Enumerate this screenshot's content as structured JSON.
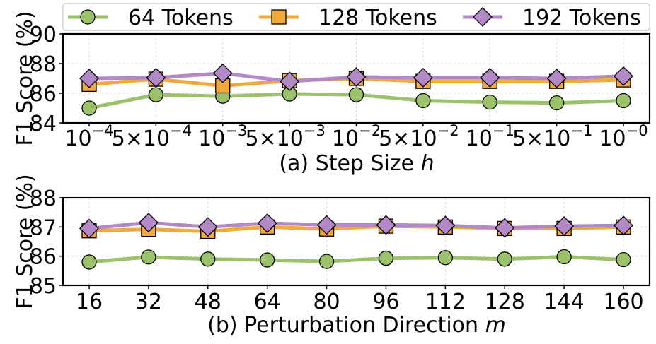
{
  "legend": {
    "entries": [
      {
        "label": "64 Tokens",
        "marker": "circle",
        "color": "#9bc26a"
      },
      {
        "label": "128 Tokens",
        "marker": "square",
        "color": "#f2a93b"
      },
      {
        "label": "192 Tokens",
        "marker": "diamond",
        "color": "#b388c6"
      }
    ]
  },
  "chart_data": [
    {
      "type": "line",
      "ylabel": "F1 Score (%)",
      "xlabel_prefix": "(a) Step Size ",
      "xlabel_var": "h",
      "ylim": [
        84,
        90
      ],
      "yticks": [
        "84",
        "86",
        "88",
        "90"
      ],
      "categories": [
        {
          "base": "10",
          "exp": "−4"
        },
        {
          "base": "5×10",
          "exp": "−4"
        },
        {
          "base": "10",
          "exp": "−3"
        },
        {
          "base": "5×10",
          "exp": "−3"
        },
        {
          "base": "10",
          "exp": "−2"
        },
        {
          "base": "5×10",
          "exp": "−2"
        },
        {
          "base": "10",
          "exp": "−1"
        },
        {
          "base": "5×10",
          "exp": "−1"
        },
        {
          "base": "10",
          "exp": "−0"
        }
      ],
      "series": [
        {
          "name": "64 Tokens",
          "values": [
            85.0,
            85.9,
            85.8,
            85.95,
            85.9,
            85.5,
            85.4,
            85.35,
            85.5
          ]
        },
        {
          "name": "128 Tokens",
          "values": [
            86.6,
            86.95,
            86.5,
            86.85,
            87.0,
            86.8,
            86.8,
            86.8,
            86.9
          ]
        },
        {
          "name": "192 Tokens",
          "values": [
            87.0,
            87.05,
            87.35,
            86.8,
            87.1,
            87.05,
            87.05,
            87.0,
            87.15
          ]
        }
      ],
      "grid": true
    },
    {
      "type": "line",
      "ylabel": "F1 Score (%)",
      "xlabel_prefix": "(b) Perturbation Direction ",
      "xlabel_var": "m",
      "ylim": [
        85,
        88
      ],
      "yticks": [
        "85",
        "86",
        "87",
        "88"
      ],
      "categories": [
        {
          "base": "16",
          "exp": ""
        },
        {
          "base": "32",
          "exp": ""
        },
        {
          "base": "48",
          "exp": ""
        },
        {
          "base": "64",
          "exp": ""
        },
        {
          "base": "80",
          "exp": ""
        },
        {
          "base": "96",
          "exp": ""
        },
        {
          "base": "112",
          "exp": ""
        },
        {
          "base": "128",
          "exp": ""
        },
        {
          "base": "144",
          "exp": ""
        },
        {
          "base": "160",
          "exp": ""
        }
      ],
      "series": [
        {
          "name": "64 Tokens",
          "values": [
            85.8,
            85.97,
            85.9,
            85.87,
            85.82,
            85.93,
            85.95,
            85.9,
            85.98,
            85.88
          ]
        },
        {
          "name": "128 Tokens",
          "values": [
            86.87,
            86.92,
            86.85,
            87.0,
            86.93,
            87.03,
            87.0,
            86.95,
            86.95,
            87.0
          ]
        },
        {
          "name": "192 Tokens",
          "values": [
            86.95,
            87.15,
            87.0,
            87.13,
            87.07,
            87.07,
            87.05,
            86.97,
            87.03,
            87.05
          ]
        }
      ],
      "grid": true
    }
  ]
}
